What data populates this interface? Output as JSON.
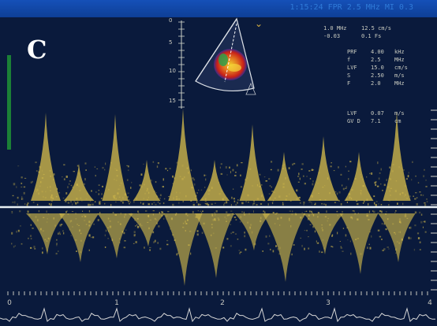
{
  "panel": {
    "letter": "C"
  },
  "header": {
    "text": "1:15:24  FPR 2.5 MHz MI 0.3"
  },
  "scale_ticks": [
    "0",
    "5",
    "10",
    "15"
  ],
  "readouts": [
    {
      "left": "1.0 MHz",
      "right": "12.5 cm/s"
    },
    {
      "left": "-0.03",
      "right": "0.1 Fs"
    },
    {
      "left": "PRF",
      "mid": "4.00",
      "right": "kHz"
    },
    {
      "left": "f",
      "mid": "2.5",
      "right": "MHz"
    },
    {
      "left": "LVF",
      "mid": "15.0",
      "right": "cm/s"
    },
    {
      "left": "S",
      "mid": "2.50",
      "right": "m/s"
    },
    {
      "left": "F",
      "mid": "2.0",
      "right": "MHz"
    },
    {
      "left": "LVF",
      "mid": "0.07",
      "right": "m/s"
    },
    {
      "left": "GV D",
      "mid": "7.1",
      "right": "cm"
    }
  ],
  "time_axis": [
    "0",
    "1",
    "2",
    "3",
    "4",
    "5"
  ],
  "probe_icon": "sector-probe-icon",
  "colors": {
    "doppler": "#cdb54a",
    "baseline": "#e8f0f4",
    "background": "#0a1a3c",
    "color_flow_red": "#d23020",
    "color_flow_yellow": "#f0c82a"
  }
}
